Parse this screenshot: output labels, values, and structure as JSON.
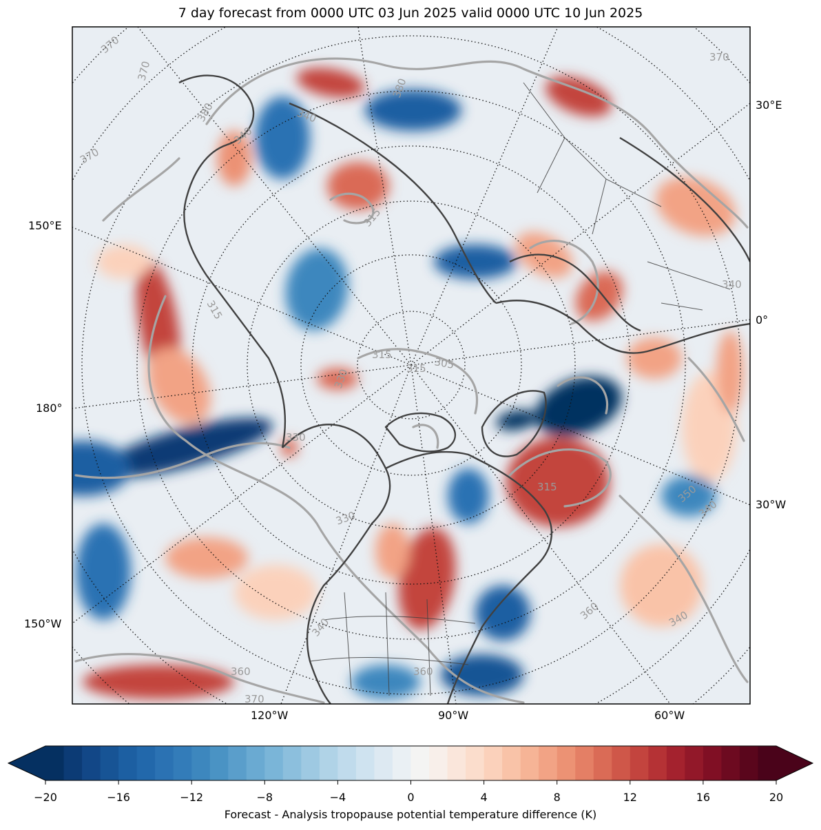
{
  "title": "7 day forecast from 0000 UTC 03 Jun 2025 valid 0000 UTC 10 Jun 2025",
  "longitude_labels": {
    "left": [
      "150°E",
      "180°",
      "150°W"
    ],
    "right": [
      "30°E",
      "0°",
      "30°W"
    ],
    "bottom": [
      "120°W",
      "90°W",
      "60°W"
    ]
  },
  "contour_labels": [
    "370",
    "370",
    "370",
    "380",
    "380",
    "340",
    "340",
    "315",
    "315",
    "315",
    "315",
    "305",
    "330",
    "330",
    "330",
    "315",
    "350",
    "340",
    "360",
    "340",
    "360",
    "360",
    "370",
    "340",
    "340",
    "370"
  ],
  "colorbar": {
    "label": "Forecast - Analysis tropopause potential temperature difference (K)",
    "min": -20,
    "max": 20,
    "step": 1.25,
    "ticks": [
      "−20",
      "−16",
      "−12",
      "−8",
      "−4",
      "0",
      "4",
      "8",
      "12",
      "16",
      "20"
    ],
    "extend": "both",
    "colormap": "RdBu_r",
    "colors": [
      "#053061",
      "#0c3b75",
      "#124787",
      "#175495",
      "#1c5fa2",
      "#2268ab",
      "#2b72b3",
      "#337cb9",
      "#3d87be",
      "#4a93c4",
      "#5a9ecb",
      "#6aaad2",
      "#7ab5d8",
      "#8cbfdd",
      "#9ec9e2",
      "#b0d3e7",
      "#c0dbec",
      "#cfe3f0",
      "#dde9f2",
      "#eaf0f4",
      "#f4f4f3",
      "#f8efea",
      "#fae6db",
      "#fbddcc",
      "#fbd1bb",
      "#f9c3a8",
      "#f6b496",
      "#f2a385",
      "#ec9274",
      "#e47f65",
      "#da6b56",
      "#cf5749",
      "#c3443e",
      "#b53235",
      "#a4222e",
      "#921829",
      "#800f24",
      "#6d0a20",
      "#5a061c",
      "#4a031a"
    ]
  }
}
